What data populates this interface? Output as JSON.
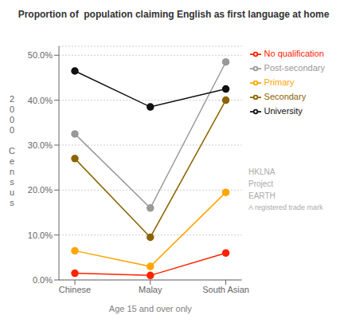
{
  "chart_data": {
    "type": "line",
    "title": "Proportion of  population claiming English as first language at home",
    "xlabel": "Age 15 and over only",
    "ylabel": "2000 Census",
    "categories": [
      "Chinese",
      "Malay",
      "South Asian"
    ],
    "series": [
      {
        "name": "No qualification",
        "values": [
          1.5,
          1.0,
          6.0
        ],
        "color": "#FF2200",
        "marker": "circle"
      },
      {
        "name": "Primary",
        "values": [
          6.5,
          3.0,
          19.5
        ],
        "color": "#FFA500",
        "marker": "circle"
      },
      {
        "name": "Secondary",
        "values": [
          27.0,
          9.5,
          40.0
        ],
        "color": "#8B6400",
        "marker": "circle"
      },
      {
        "name": "Post-secondary",
        "values": [
          32.5,
          16.0,
          48.5
        ],
        "color": "#999999",
        "marker": "circle"
      },
      {
        "name": "University",
        "values": [
          46.5,
          38.5,
          42.5
        ],
        "color": "#111111",
        "marker": "circle"
      }
    ],
    "ylim": [
      0,
      52
    ],
    "yticks": [
      {
        "value": 0,
        "label": "0.0%"
      },
      {
        "value": 10,
        "label": "10.0%"
      },
      {
        "value": 20,
        "label": "20.0%"
      },
      {
        "value": 30,
        "label": "30.0%"
      },
      {
        "value": 40,
        "label": "40.0%"
      },
      {
        "value": 50,
        "label": "50.0%"
      }
    ],
    "grid": true,
    "legend": "right",
    "annotations": [
      "HKLNA",
      "Project",
      "EARTH",
      "A registered trade mark"
    ]
  }
}
